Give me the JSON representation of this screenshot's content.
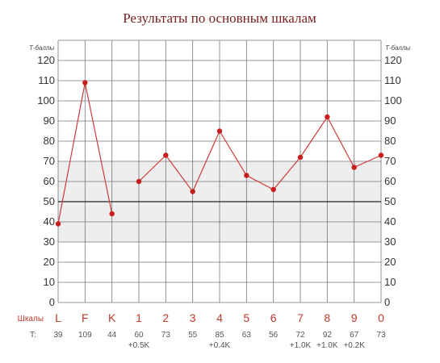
{
  "chart_data": {
    "type": "line",
    "title": "Результаты по основным шкалам",
    "ylabel": "Т-баллы",
    "ylim": [
      0,
      120
    ],
    "yticks": [
      0,
      10,
      20,
      30,
      40,
      50,
      60,
      70,
      80,
      90,
      100,
      110,
      120
    ],
    "grid": true,
    "normal_band": [
      30,
      70
    ],
    "reference_line": 50,
    "category_row_label": "Шкалы",
    "value_row_label": "T:",
    "categories": [
      "L",
      "F",
      "K",
      "1",
      "2",
      "3",
      "4",
      "5",
      "6",
      "7",
      "8",
      "9",
      "0"
    ],
    "values": [
      39,
      109,
      44,
      60,
      73,
      55,
      85,
      63,
      56,
      72,
      92,
      67,
      73
    ],
    "annotations": [
      "",
      "",
      "",
      "+0.5K",
      "",
      "",
      "+0.4K",
      "",
      "",
      "+1.0K",
      "+1.0K",
      "+0.2K",
      ""
    ],
    "segments": [
      [
        0,
        2
      ],
      [
        3,
        12
      ]
    ],
    "colors": {
      "line": "#d03a3a",
      "marker": "#c81e1e",
      "band": "#eeeeee",
      "grid": "#777777",
      "reference": "#222222",
      "title": "#7a1f1f",
      "category": "#c0392b"
    }
  }
}
